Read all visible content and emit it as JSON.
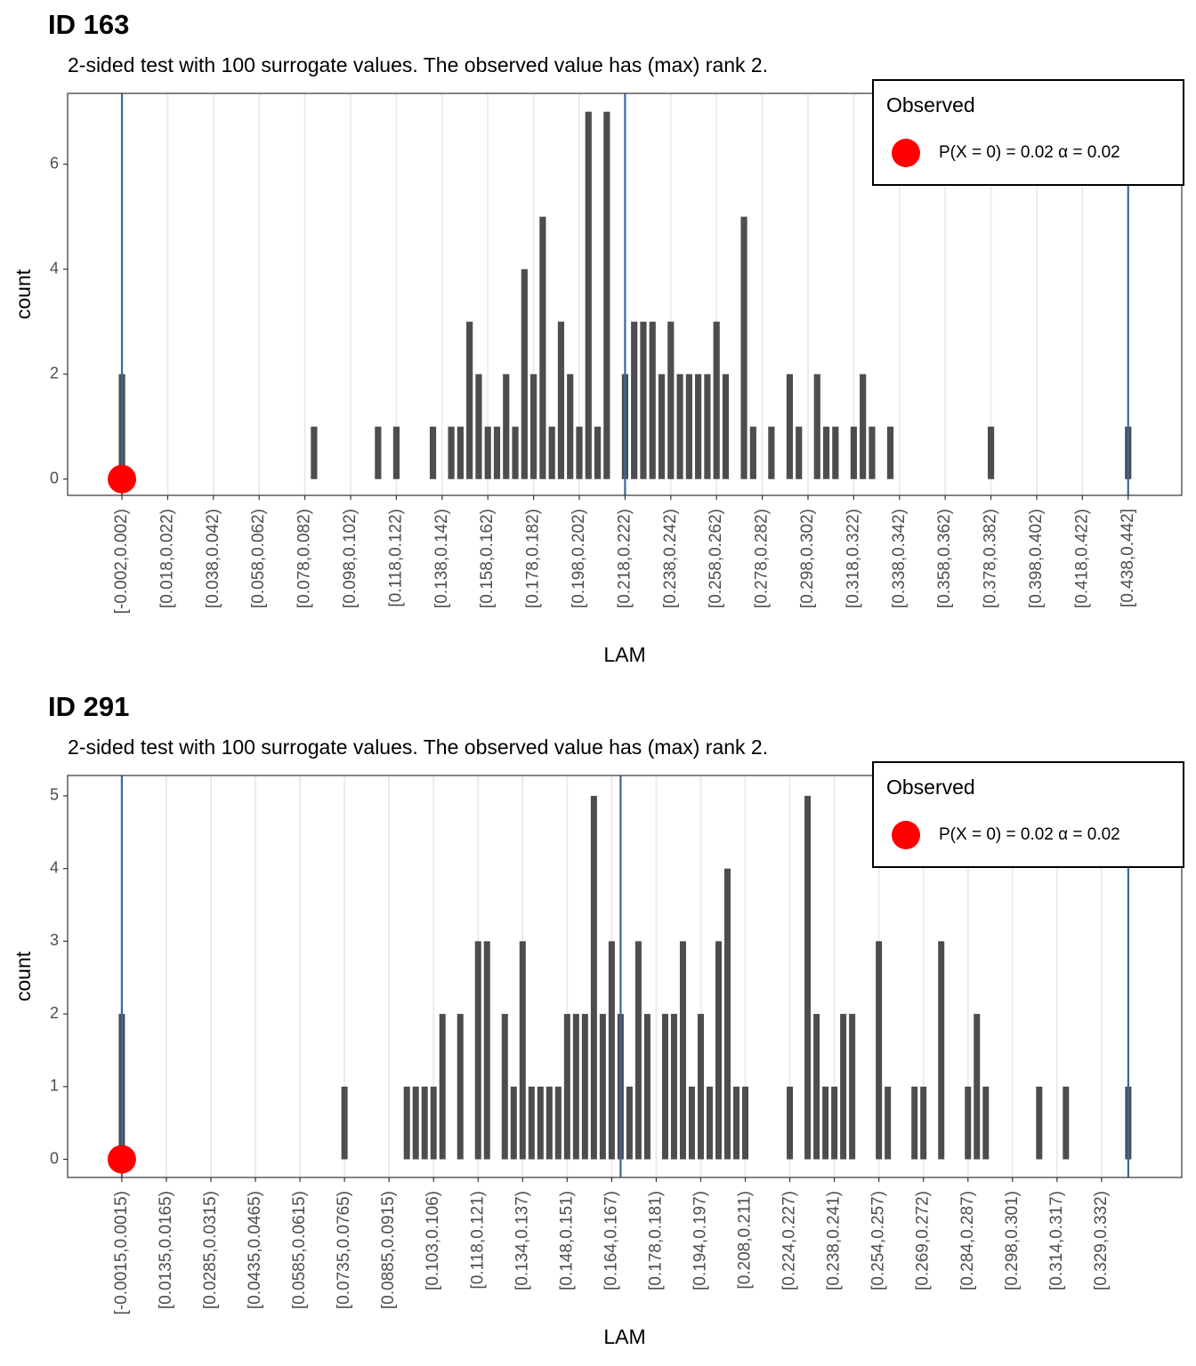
{
  "chart_data": [
    {
      "type": "bar",
      "title": "ID 163",
      "subtitle": "2-sided test with 100 surrogate values. The observed value has (max) rank 2.",
      "x_label": "LAM",
      "y_label": "count",
      "color": "#4d4d4d",
      "grid": "x",
      "categories": [
        "[-0.002,0.002)",
        null,
        null,
        null,
        null,
        "[0.018,0.022)",
        null,
        null,
        null,
        null,
        "[0.038,0.042)",
        null,
        null,
        null,
        null,
        "[0.058,0.062)",
        null,
        null,
        null,
        null,
        "[0.078,0.082)",
        null,
        null,
        null,
        null,
        "[0.098,0.102)",
        null,
        null,
        null,
        null,
        "[0.118,0.122)",
        null,
        null,
        null,
        null,
        "[0.138,0.142)",
        null,
        null,
        null,
        null,
        "[0.158,0.162)",
        null,
        null,
        null,
        null,
        "[0.178,0.182)",
        null,
        null,
        null,
        null,
        "[0.198,0.202)",
        null,
        null,
        null,
        null,
        "[0.218,0.222)",
        null,
        null,
        null,
        null,
        "[0.238,0.242)",
        null,
        null,
        null,
        null,
        "[0.258,0.262)",
        null,
        null,
        null,
        null,
        "[0.278,0.282)",
        null,
        null,
        null,
        null,
        "[0.298,0.302)",
        null,
        null,
        null,
        null,
        "[0.318,0.322)",
        null,
        null,
        null,
        null,
        "[0.338,0.342)",
        null,
        null,
        null,
        null,
        "[0.358,0.362)",
        null,
        null,
        null,
        null,
        "[0.378,0.382)",
        null,
        null,
        null,
        null,
        "[0.398,0.402)",
        null,
        null,
        null,
        null,
        "[0.418,0.422)",
        null,
        null,
        null,
        null,
        "[0.438,0.442]"
      ],
      "values": [
        2,
        0,
        0,
        0,
        0,
        0,
        0,
        0,
        0,
        0,
        0,
        0,
        0,
        0,
        0,
        0,
        0,
        0,
        0,
        0,
        0,
        1,
        0,
        0,
        0,
        0,
        0,
        0,
        1,
        0,
        1,
        0,
        0,
        0,
        1,
        0,
        1,
        1,
        3,
        2,
        1,
        1,
        2,
        1,
        4,
        2,
        5,
        1,
        3,
        2,
        1,
        7,
        1,
        7,
        0,
        2,
        3,
        3,
        3,
        2,
        3,
        2,
        2,
        2,
        2,
        3,
        2,
        0,
        5,
        1,
        0,
        1,
        0,
        2,
        1,
        0,
        2,
        1,
        1,
        0,
        1,
        2,
        1,
        0,
        1,
        0,
        0,
        0,
        0,
        0,
        0,
        0,
        0,
        0,
        0,
        1,
        0,
        0,
        0,
        0,
        0,
        0,
        0,
        0,
        0,
        0,
        0,
        0,
        0,
        0,
        1
      ],
      "xlim": [
        -0.002,
        0.442
      ],
      "ylim": [
        -0.31,
        7.35
      ],
      "yticks": [
        0,
        2,
        4,
        6
      ],
      "vlines": [
        0,
        0.22,
        0.44
      ],
      "vline_color": "#3a6a9a",
      "observed": {
        "x": 0,
        "y": 0,
        "color": "#ff0000"
      },
      "legend": {
        "title": "Observed",
        "label": "P(X = 0) = 0.02  α = 0.02"
      }
    },
    {
      "type": "bar",
      "title": "ID 291",
      "subtitle": "2-sided test with 100 surrogate values. The observed value has (max) rank 2.",
      "x_label": "LAM",
      "y_label": "count",
      "color": "#4d4d4d",
      "grid": "x",
      "categories": [
        "[-0.0015,0.0015)",
        null,
        null,
        null,
        null,
        "[0.0135,0.0165)",
        null,
        null,
        null,
        null,
        "[0.0285,0.0315)",
        null,
        null,
        null,
        null,
        "[0.0435,0.0465)",
        null,
        null,
        null,
        null,
        "[0.0585,0.0615)",
        null,
        null,
        null,
        null,
        "[0.0735,0.0765)",
        null,
        null,
        null,
        null,
        "[0.0885,0.0915)",
        null,
        null,
        null,
        null,
        "[0.103,0.106)",
        null,
        null,
        null,
        null,
        "[0.118,0.121)",
        null,
        null,
        null,
        null,
        "[0.134,0.137)",
        null,
        null,
        null,
        null,
        "[0.148,0.151)",
        null,
        null,
        null,
        null,
        "[0.164,0.167)",
        null,
        null,
        null,
        null,
        "[0.178,0.181)",
        null,
        null,
        null,
        null,
        "[0.194,0.197)",
        null,
        null,
        null,
        null,
        "[0.208,0.211)",
        null,
        null,
        null,
        null,
        "[0.224,0.227)",
        null,
        null,
        null,
        null,
        "[0.238,0.241)",
        null,
        null,
        null,
        null,
        "[0.254,0.257)",
        null,
        null,
        null,
        null,
        "[0.269,0.272)",
        null,
        null,
        null,
        null,
        "[0.284,0.287)",
        null,
        null,
        null,
        null,
        "[0.298,0.301)",
        null,
        null,
        null,
        null,
        "[0.314,0.317)",
        null,
        null,
        null,
        null,
        "[0.329,0.332)",
        null,
        null,
        null
      ],
      "values": [
        2,
        0,
        0,
        0,
        0,
        0,
        0,
        0,
        0,
        0,
        0,
        0,
        0,
        0,
        0,
        0,
        0,
        0,
        0,
        0,
        0,
        0,
        0,
        0,
        0,
        1,
        0,
        0,
        0,
        0,
        0,
        0,
        1,
        1,
        1,
        1,
        2,
        0,
        2,
        0,
        3,
        3,
        0,
        2,
        1,
        3,
        1,
        1,
        1,
        1,
        2,
        2,
        2,
        5,
        2,
        3,
        2,
        1,
        3,
        2,
        0,
        2,
        2,
        3,
        1,
        2,
        1,
        3,
        4,
        1,
        1,
        0,
        0,
        0,
        0,
        1,
        0,
        5,
        2,
        1,
        1,
        2,
        2,
        0,
        0,
        3,
        1,
        0,
        0,
        1,
        1,
        0,
        3,
        0,
        0,
        1,
        2,
        1,
        0,
        0,
        0,
        0,
        0,
        1,
        0,
        0,
        1,
        0,
        0,
        0,
        0,
        0,
        0,
        1
      ],
      "xlim": [
        -0.0015,
        0.3405
      ],
      "ylim": [
        -0.25,
        5.28
      ],
      "yticks": [
        0,
        1,
        2,
        3,
        4,
        5
      ],
      "vlines": [
        0,
        0.168,
        0.339
      ],
      "vline_color": "#3a6a9a",
      "observed": {
        "x": 0,
        "y": 0,
        "color": "#ff0000"
      },
      "legend": {
        "title": "Observed",
        "label": "P(X = 0) = 0.02  α = 0.02"
      }
    }
  ]
}
